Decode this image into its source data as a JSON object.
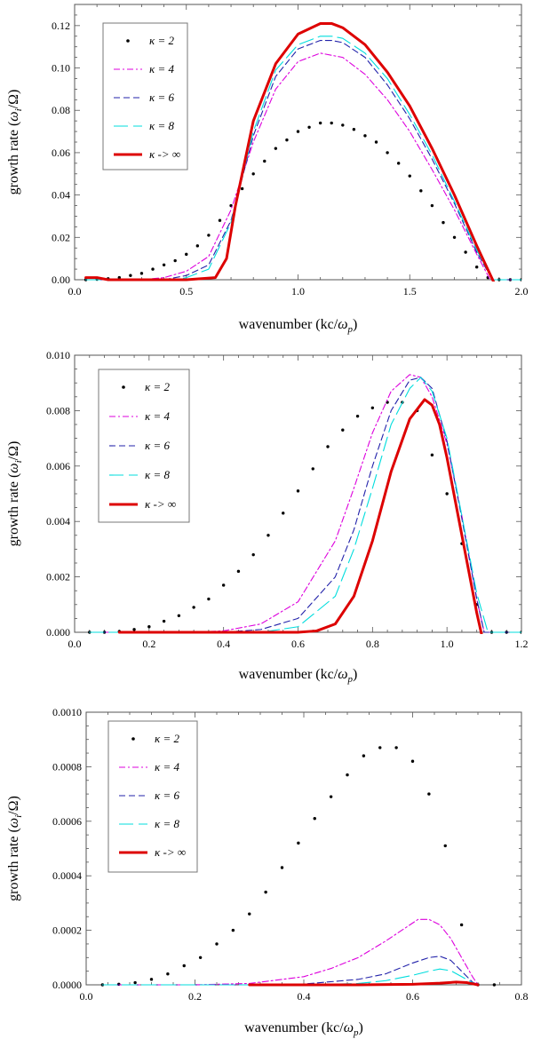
{
  "figure": {
    "panel_count": 3
  },
  "chart_data": [
    {
      "type": "line",
      "title": "",
      "xlabel_parts": [
        "wavenumber (kc/",
        "ω",
        "p",
        ")"
      ],
      "ylabel_parts": [
        "growth rate (",
        "ω",
        "i",
        "/Ω)"
      ],
      "xlim": [
        0,
        2.0
      ],
      "ylim": [
        0,
        0.13
      ],
      "xticks": [
        0.0,
        0.5,
        1.0,
        1.5,
        2.0
      ],
      "xtick_labels": [
        "0.0",
        "0.5",
        "1.0",
        "1.5",
        "2.0"
      ],
      "yticks": [
        0.0,
        0.02,
        0.04,
        0.06,
        0.08,
        0.1,
        0.12
      ],
      "ytick_labels": [
        "0.00",
        "0.02",
        "0.04",
        "0.06",
        "0.08",
        "0.10",
        "0.12"
      ],
      "legend_position": "top-left",
      "series": [
        {
          "name": "κ = 2",
          "style": "dots",
          "color": "#000000",
          "x": [
            0.05,
            0.1,
            0.15,
            0.2,
            0.25,
            0.3,
            0.35,
            0.4,
            0.45,
            0.5,
            0.55,
            0.6,
            0.65,
            0.7,
            0.75,
            0.8,
            0.85,
            0.9,
            0.95,
            1.0,
            1.05,
            1.1,
            1.15,
            1.2,
            1.25,
            1.3,
            1.35,
            1.4,
            1.45,
            1.5,
            1.55,
            1.6,
            1.65,
            1.7,
            1.75,
            1.8,
            1.85,
            1.9,
            1.95,
            2.0
          ],
          "y": [
            0.0,
            0.0002,
            0.0005,
            0.001,
            0.002,
            0.003,
            0.005,
            0.007,
            0.009,
            0.012,
            0.016,
            0.021,
            0.028,
            0.035,
            0.043,
            0.05,
            0.056,
            0.062,
            0.066,
            0.07,
            0.072,
            0.074,
            0.074,
            0.073,
            0.071,
            0.068,
            0.065,
            0.06,
            0.055,
            0.049,
            0.042,
            0.035,
            0.027,
            0.02,
            0.013,
            0.006,
            0.001,
            0.0,
            0.0,
            0.0
          ]
        },
        {
          "name": "κ = 4",
          "style": "dashdot",
          "color": "#dd00dd",
          "x": [
            0.05,
            0.3,
            0.4,
            0.5,
            0.6,
            0.7,
            0.8,
            0.9,
            1.0,
            1.1,
            1.2,
            1.3,
            1.4,
            1.5,
            1.6,
            1.7,
            1.8,
            1.86,
            1.9,
            2.0
          ],
          "y": [
            0.0,
            0.0,
            0.001,
            0.004,
            0.011,
            0.033,
            0.065,
            0.09,
            0.103,
            0.107,
            0.105,
            0.097,
            0.085,
            0.07,
            0.052,
            0.033,
            0.012,
            0.0,
            0.0,
            0.0
          ]
        },
        {
          "name": "κ = 6",
          "style": "dashed",
          "color": "#2222aa",
          "x": [
            0.05,
            0.4,
            0.5,
            0.6,
            0.7,
            0.8,
            0.9,
            1.0,
            1.1,
            1.15,
            1.2,
            1.3,
            1.4,
            1.5,
            1.6,
            1.7,
            1.8,
            1.87,
            1.9,
            2.0
          ],
          "y": [
            0.0,
            0.0,
            0.002,
            0.007,
            0.028,
            0.068,
            0.096,
            0.109,
            0.113,
            0.113,
            0.112,
            0.105,
            0.092,
            0.076,
            0.057,
            0.036,
            0.013,
            0.0,
            0.0,
            0.0
          ]
        },
        {
          "name": "κ = 8",
          "style": "longdash",
          "color": "#00dddd",
          "x": [
            0.05,
            0.45,
            0.5,
            0.6,
            0.7,
            0.8,
            0.9,
            1.0,
            1.1,
            1.15,
            1.2,
            1.3,
            1.4,
            1.5,
            1.6,
            1.7,
            1.8,
            1.87,
            1.9,
            2.0
          ],
          "y": [
            0.0,
            0.0,
            0.001,
            0.005,
            0.027,
            0.07,
            0.099,
            0.111,
            0.115,
            0.115,
            0.114,
            0.107,
            0.095,
            0.078,
            0.059,
            0.037,
            0.014,
            0.0,
            0.0,
            0.0
          ]
        },
        {
          "name": "κ -> ∞",
          "style": "solid",
          "color": "#dd0000",
          "x": [
            0.05,
            0.1,
            0.15,
            0.2,
            0.5,
            0.63,
            0.68,
            0.72,
            0.8,
            0.9,
            1.0,
            1.1,
            1.15,
            1.2,
            1.3,
            1.4,
            1.5,
            1.6,
            1.7,
            1.8,
            1.88
          ],
          "y": [
            0.001,
            0.001,
            0.0,
            0.0,
            0.0,
            0.001,
            0.01,
            0.035,
            0.075,
            0.102,
            0.116,
            0.121,
            0.121,
            0.119,
            0.111,
            0.098,
            0.082,
            0.062,
            0.04,
            0.016,
            -0.002
          ]
        }
      ]
    },
    {
      "type": "line",
      "title": "",
      "xlabel_parts": [
        "wavenumber (kc/",
        "ω",
        "p",
        ")"
      ],
      "ylabel_parts": [
        "growth rate (",
        "ω",
        "i",
        "/Ω)"
      ],
      "xlim": [
        0,
        1.2
      ],
      "ylim": [
        0,
        0.01
      ],
      "xticks": [
        0.0,
        0.2,
        0.4,
        0.6,
        0.8,
        1.0,
        1.2
      ],
      "xtick_labels": [
        "0.0",
        "0.2",
        "0.4",
        "0.6",
        "0.8",
        "1.0",
        "1.2"
      ],
      "yticks": [
        0.0,
        0.002,
        0.004,
        0.006,
        0.008,
        0.01
      ],
      "ytick_labels": [
        "0.000",
        "0.002",
        "0.004",
        "0.006",
        "0.008",
        "0.010"
      ],
      "legend_position": "top-left",
      "series": [
        {
          "name": "κ = 2",
          "style": "dots",
          "color": "#000000",
          "x": [
            0.04,
            0.08,
            0.12,
            0.16,
            0.2,
            0.24,
            0.28,
            0.32,
            0.36,
            0.4,
            0.44,
            0.48,
            0.52,
            0.56,
            0.6,
            0.64,
            0.68,
            0.72,
            0.76,
            0.8,
            0.84,
            0.88,
            0.92,
            0.96,
            1.0,
            1.04,
            1.08,
            1.12,
            1.16,
            1.2
          ],
          "y": [
            0.0,
            0.0,
            3e-05,
            0.0001,
            0.0002,
            0.0004,
            0.0006,
            0.0009,
            0.0012,
            0.0017,
            0.0022,
            0.0028,
            0.0035,
            0.0043,
            0.0051,
            0.0059,
            0.0067,
            0.0073,
            0.0078,
            0.0081,
            0.0083,
            0.0083,
            0.008,
            0.0064,
            0.005,
            0.0032,
            0.001,
            0.0,
            0.0,
            0.0
          ]
        },
        {
          "name": "κ = 4",
          "style": "dashdot",
          "color": "#dd00dd",
          "x": [
            0.04,
            0.3,
            0.4,
            0.5,
            0.6,
            0.7,
            0.75,
            0.8,
            0.85,
            0.9,
            0.93,
            0.96,
            1.0,
            1.04,
            1.08,
            1.1,
            1.2
          ],
          "y": [
            0.0,
            0.0,
            5e-05,
            0.0003,
            0.0011,
            0.0033,
            0.0052,
            0.0072,
            0.0087,
            0.0093,
            0.0092,
            0.0085,
            0.0068,
            0.0042,
            0.0012,
            0.0,
            0.0
          ]
        },
        {
          "name": "κ = 6",
          "style": "dashed",
          "color": "#2222aa",
          "x": [
            0.04,
            0.4,
            0.5,
            0.6,
            0.7,
            0.75,
            0.8,
            0.85,
            0.9,
            0.93,
            0.96,
            1.0,
            1.04,
            1.08,
            1.1,
            1.2
          ],
          "y": [
            0.0,
            0.0,
            0.0001,
            0.0005,
            0.002,
            0.0037,
            0.006,
            0.008,
            0.0091,
            0.0092,
            0.0088,
            0.0069,
            0.0041,
            0.0012,
            0.0,
            0.0
          ]
        },
        {
          "name": "κ = 8",
          "style": "longdash",
          "color": "#00dddd",
          "x": [
            0.04,
            0.5,
            0.6,
            0.7,
            0.75,
            0.8,
            0.85,
            0.9,
            0.93,
            0.96,
            1.0,
            1.04,
            1.08,
            1.11,
            1.2
          ],
          "y": [
            0.0,
            0.0,
            0.0002,
            0.0013,
            0.003,
            0.0052,
            0.0075,
            0.0088,
            0.0092,
            0.0087,
            0.007,
            0.0042,
            0.0014,
            0.0,
            0.0
          ]
        },
        {
          "name": "κ -> ∞",
          "style": "solid",
          "color": "#dd0000",
          "x": [
            0.12,
            0.5,
            0.6,
            0.65,
            0.7,
            0.75,
            0.8,
            0.85,
            0.9,
            0.94,
            0.96,
            0.98,
            1.0,
            1.03,
            1.06,
            1.08,
            1.095
          ],
          "y": [
            0.0,
            0.0,
            0.0,
            5e-05,
            0.0003,
            0.0013,
            0.0033,
            0.0058,
            0.0077,
            0.0084,
            0.0082,
            0.0075,
            0.0063,
            0.0042,
            0.0021,
            0.0007,
            -0.0002
          ]
        }
      ]
    },
    {
      "type": "line",
      "title": "",
      "xlabel_parts": [
        "wavenumber (kc/",
        "ω",
        "p",
        ")"
      ],
      "ylabel_parts": [
        "growth rate (",
        "ω",
        "i",
        "/Ω)"
      ],
      "xlim": [
        0,
        0.8
      ],
      "ylim": [
        0,
        0.001
      ],
      "xticks": [
        0.0,
        0.2,
        0.4,
        0.6,
        0.8
      ],
      "xtick_labels": [
        "0.0",
        "0.2",
        "0.4",
        "0.6",
        "0.8"
      ],
      "yticks": [
        0.0,
        0.0002,
        0.0004,
        0.0006,
        0.0008,
        0.001
      ],
      "ytick_labels": [
        "0.0000",
        "0.0002",
        "0.0004",
        "0.0006",
        "0.0008",
        "0.0010"
      ],
      "legend_position": "top-left",
      "series": [
        {
          "name": "κ = 2",
          "style": "dots",
          "color": "#000000",
          "x": [
            0.03,
            0.06,
            0.09,
            0.12,
            0.15,
            0.18,
            0.21,
            0.24,
            0.27,
            0.3,
            0.33,
            0.36,
            0.39,
            0.42,
            0.45,
            0.48,
            0.51,
            0.54,
            0.57,
            0.6,
            0.63,
            0.66,
            0.69,
            0.72,
            0.75
          ],
          "y": [
            0.0,
            2e-06,
            8e-06,
            2e-05,
            4e-05,
            7e-05,
            0.0001,
            0.00015,
            0.0002,
            0.00026,
            0.00034,
            0.00043,
            0.00052,
            0.00061,
            0.00069,
            0.00077,
            0.00084,
            0.00087,
            0.00087,
            0.00082,
            0.0007,
            0.00051,
            0.00022,
            0.0,
            0.0
          ]
        },
        {
          "name": "κ = 4",
          "style": "dashdot",
          "color": "#dd00dd",
          "x": [
            0.03,
            0.2,
            0.3,
            0.4,
            0.45,
            0.5,
            0.55,
            0.58,
            0.61,
            0.63,
            0.65,
            0.67,
            0.69,
            0.71,
            0.72
          ],
          "y": [
            0.0,
            0.0,
            5e-06,
            3e-05,
            6e-05,
            0.0001,
            0.00016,
            0.0002,
            0.00024,
            0.00024,
            0.00022,
            0.00017,
            0.0001,
            3e-05,
            0.0
          ]
        },
        {
          "name": "κ = 6",
          "style": "dashed",
          "color": "#2222aa",
          "x": [
            0.03,
            0.3,
            0.4,
            0.5,
            0.55,
            0.6,
            0.63,
            0.65,
            0.67,
            0.69,
            0.71,
            0.72
          ],
          "y": [
            0.0,
            0.0,
            3e-06,
            2e-05,
            4e-05,
            8e-05,
            0.0001,
            0.000105,
            9e-05,
            5e-05,
            1e-05,
            0.0
          ]
        },
        {
          "name": "κ = 8",
          "style": "longdash",
          "color": "#00dddd",
          "x": [
            0.03,
            0.4,
            0.5,
            0.55,
            0.6,
            0.63,
            0.65,
            0.67,
            0.69,
            0.71,
            0.72
          ],
          "y": [
            0.0,
            0.0,
            5e-06,
            1.5e-05,
            3.5e-05,
            5e-05,
            5.8e-05,
            5.2e-05,
            3e-05,
            8e-06,
            0.0
          ]
        },
        {
          "name": "κ -> ∞",
          "style": "solid",
          "color": "#dd0000",
          "x": [
            0.3,
            0.5,
            0.6,
            0.65,
            0.68,
            0.7,
            0.72
          ],
          "y": [
            0.0,
            0.0,
            2e-06,
            6e-06,
            1e-05,
            8e-06,
            0.0
          ]
        }
      ]
    }
  ]
}
